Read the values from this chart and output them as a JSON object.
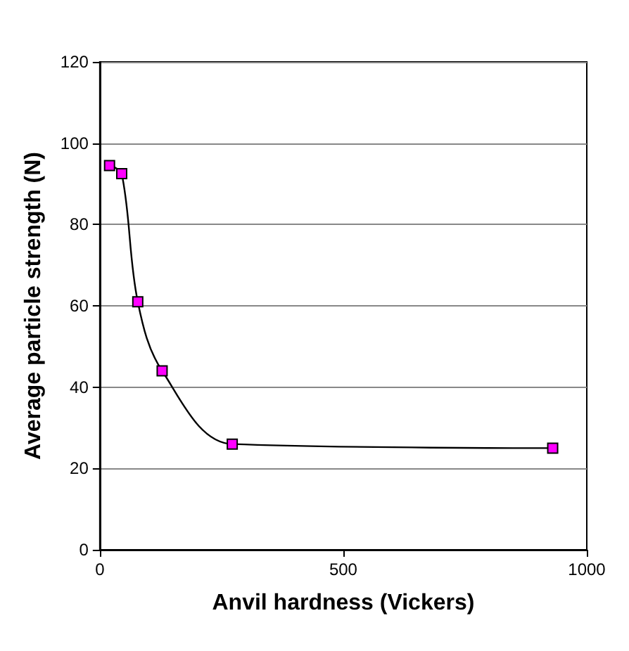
{
  "chart_data": {
    "type": "line",
    "xlabel": "Anvil hardness (Vickers)",
    "ylabel": "Average particle strength (N)",
    "x": [
      20,
      45,
      78,
      128,
      272,
      930
    ],
    "series": [
      {
        "color": "#ff00ff",
        "values": [
          94.5,
          92.5,
          61,
          44,
          26,
          25
        ]
      }
    ],
    "xlim": [
      0,
      1000
    ],
    "xticks": [
      0,
      500,
      1000
    ],
    "ylim": [
      0,
      120
    ],
    "yticks": [
      0,
      20,
      40,
      60,
      80,
      100,
      120
    ],
    "grid": "y",
    "marker": "square",
    "line_style": "solid"
  }
}
